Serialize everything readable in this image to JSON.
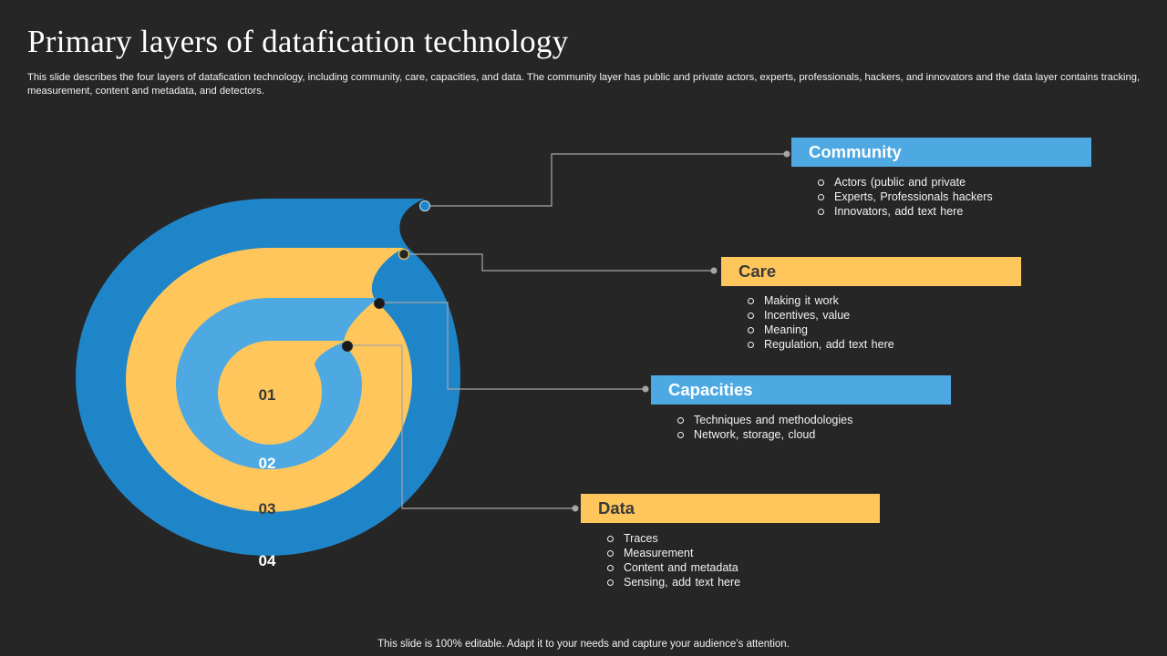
{
  "slide": {
    "title": "Primary layers of datafication technology",
    "description": "This slide describes the four layers of datafication technology, including community, care, capacities, and data. The community layer has public and private actors, experts, professionals, hackers, and innovators and the data layer contains tracking, measurement, content and metadata, and detectors.",
    "footer": "This slide is 100% editable. Adapt it to your needs and capture your audience’s attention."
  },
  "colors": {
    "background": "#262626",
    "blue_dark": "#1f85c9",
    "blue_light": "#4ea9e3",
    "yellow": "#ffc65c",
    "connector": "#a6a6a6"
  },
  "spiral": {
    "numbers": [
      "01",
      "02",
      "03",
      "04"
    ]
  },
  "layers": [
    {
      "name": "Community",
      "color": "#4ea9e3",
      "text_color": "#ffffff",
      "items": [
        "Actors (public and private",
        "Experts, Professionals hackers",
        "Innovators,  add text here"
      ]
    },
    {
      "name": "Care",
      "color": "#ffc65c",
      "text_color": "#3a3a3a",
      "items": [
        "Making it work",
        "Incentives,  value",
        "Meaning",
        "Regulation,  add text here"
      ]
    },
    {
      "name": "Capacities",
      "color": "#4ea9e3",
      "text_color": "#ffffff",
      "items": [
        "Techniques  and  methodologies",
        "Network,  storage,  cloud"
      ]
    },
    {
      "name": "Data",
      "color": "#ffc65c",
      "text_color": "#3a3a3a",
      "items": [
        "Traces",
        "Measurement",
        "Content  and  metadata",
        "Sensing, add text here"
      ]
    }
  ]
}
